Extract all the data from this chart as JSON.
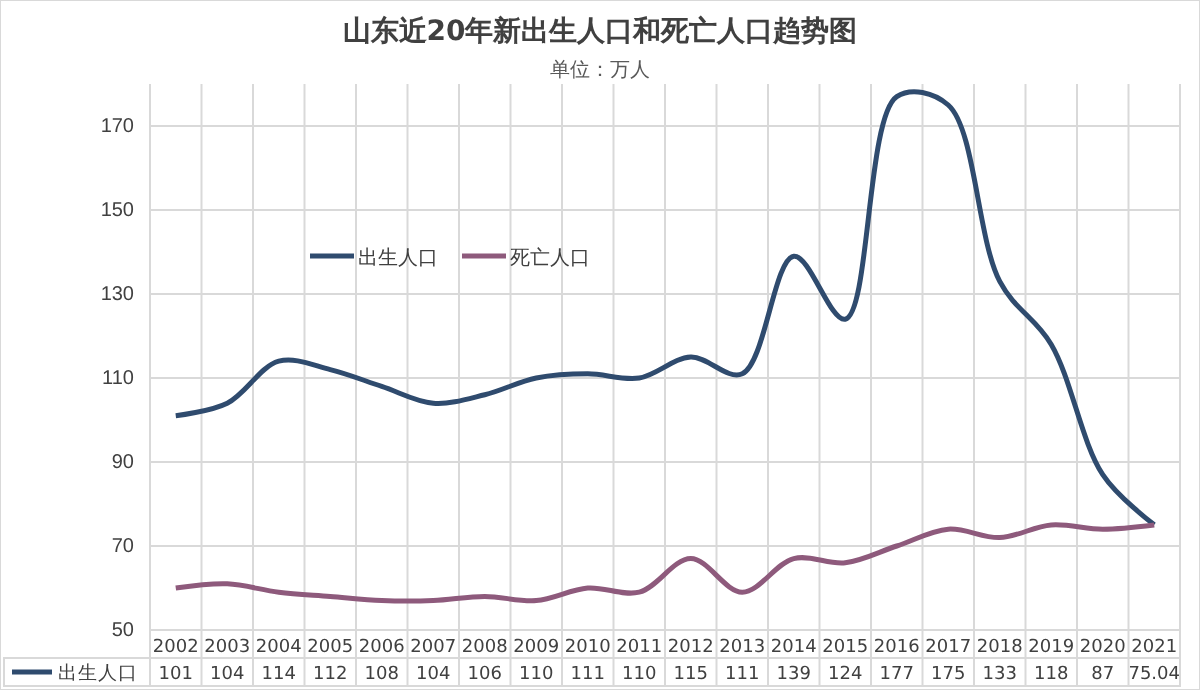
{
  "chart_data": {
    "type": "line",
    "title": "山东近20年新出生人口和死亡人口趋势图",
    "subtitle": "单位：万人",
    "categories": [
      "2002",
      "2003",
      "2004",
      "2005",
      "2006",
      "2007",
      "2008",
      "2009",
      "2010",
      "2011",
      "2012",
      "2013",
      "2014",
      "2015",
      "2016",
      "2017",
      "2018",
      "2019",
      "2020",
      "2021"
    ],
    "series": [
      {
        "name": "出生人口",
        "color": "#2f4b6e",
        "values": [
          101,
          104,
          114,
          112,
          108,
          104,
          106,
          110,
          111,
          110,
          115,
          111,
          139,
          124,
          177,
          175,
          133,
          118,
          87,
          75.04
        ],
        "value_labels": [
          "101",
          "104",
          "114",
          "112",
          "108",
          "104",
          "106",
          "110",
          "111",
          "110",
          "115",
          "111",
          "139",
          "124",
          "177",
          "175",
          "133",
          "118",
          "87",
          "75.04"
        ]
      },
      {
        "name": "死亡人口",
        "color": "#8e5a7c",
        "values": [
          60,
          61,
          59,
          58,
          57,
          57,
          58,
          57,
          60,
          59,
          67,
          59,
          67,
          66,
          70,
          74,
          72,
          75,
          74,
          75
        ]
      }
    ],
    "ylim": [
      50,
      180
    ],
    "yticks": [
      50,
      70,
      90,
      110,
      130,
      150,
      170
    ],
    "grid": true,
    "legend": "top left",
    "line_style": "solid",
    "marker": "none"
  }
}
